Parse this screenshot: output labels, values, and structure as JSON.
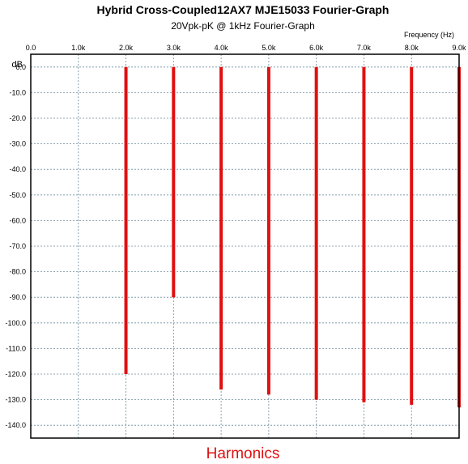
{
  "chart_data": {
    "type": "bar",
    "title": "Hybrid Cross-Coupled12AX7 MJE15033 Fourier-Graph",
    "subtitle": "20Vpk-pK @ 1kHz Fourier-Graph",
    "xlabel": "Harmonics",
    "xunit": "Frequency   (Hz)",
    "ylabel": "dB",
    "xlim": [
      0,
      9000
    ],
    "ylim": [
      -145,
      5
    ],
    "grid": true,
    "x_ticks": [
      "0.0",
      "1.0k",
      "2.0k",
      "3.0k",
      "4.0k",
      "5.0k",
      "6.0k",
      "7.0k",
      "8.0k",
      "9.0k"
    ],
    "y_ticks": [
      "0.0",
      "-10.0",
      "-20.0",
      "-30.0",
      "-40.0",
      "-50.0",
      "-60.0",
      "-70.0",
      "-80.0",
      "-90.0",
      "-100.0",
      "-110.0",
      "-120.0",
      "-130.0",
      "-140.0"
    ],
    "bar_color": "#e01010",
    "series": [
      {
        "x": [
          2000,
          3000,
          4000,
          5000,
          6000,
          7000,
          8000,
          9000
        ],
        "values": [
          -120,
          -90,
          -126,
          -128,
          -130,
          -131,
          -132,
          -133
        ]
      }
    ]
  }
}
